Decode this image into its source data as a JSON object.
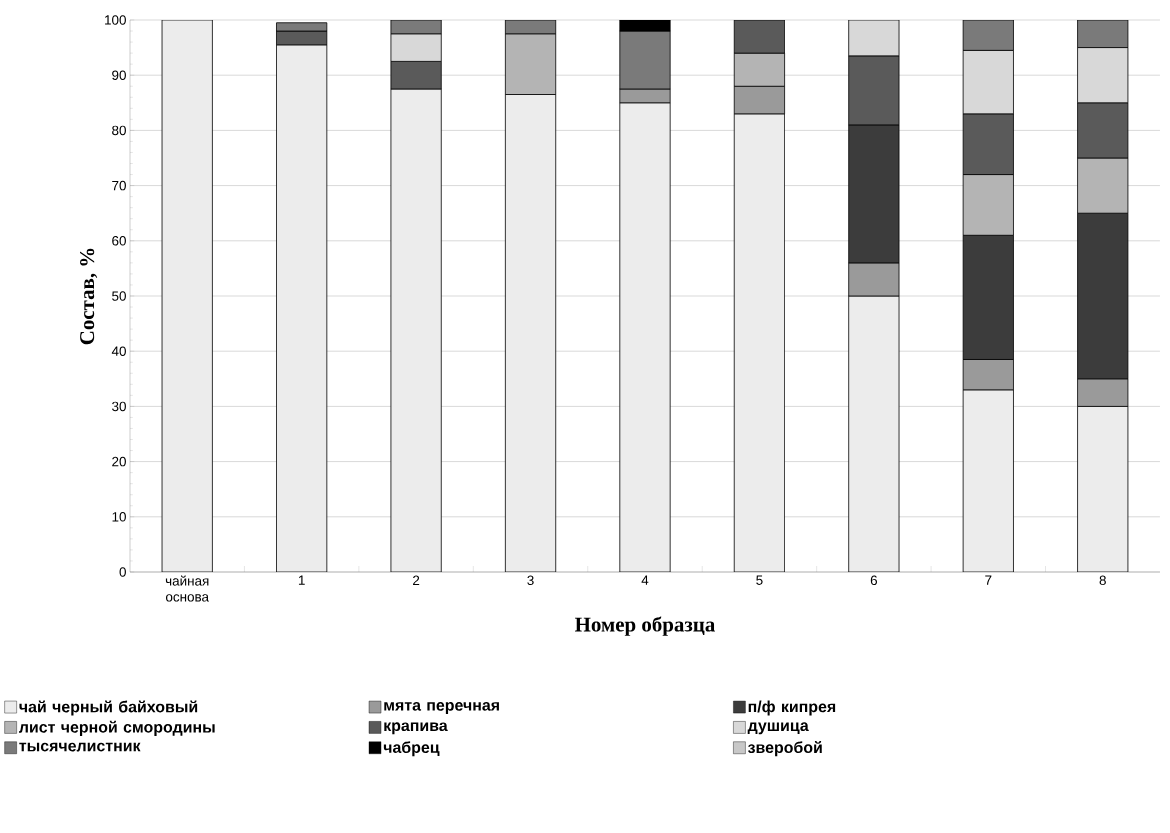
{
  "chart_data": {
    "type": "bar",
    "stacked": true,
    "xlabel": "Номер образца",
    "ylabel": "**Состав,** %",
    "categories": [
      "чайная основа",
      "1",
      "2",
      "3",
      "4",
      "5",
      "6",
      "7",
      "8"
    ],
    "series": [
      {
        "name": "чай черный байховый",
        "color": "#ececec",
        "values": [
          100,
          95.5,
          87.5,
          86.5,
          85,
          83,
          50,
          33,
          30
        ]
      },
      {
        "name": "мята перечная",
        "color": "#9a9a9a",
        "values": [
          null,
          null,
          null,
          null,
          2.5,
          5,
          6,
          5.5,
          5
        ]
      },
      {
        "name": "п/ф кипрея",
        "color": "#3c3c3c",
        "values": [
          null,
          null,
          null,
          null,
          null,
          null,
          25,
          22.5,
          30
        ]
      },
      {
        "name": "лист черной смородины",
        "color": "#b4b4b4",
        "values": [
          null,
          null,
          null,
          11,
          null,
          6,
          null,
          11,
          10
        ]
      },
      {
        "name": "крапива",
        "color": "#5a5a5a",
        "values": [
          null,
          2.5,
          5,
          null,
          null,
          6,
          12.5,
          11,
          10
        ]
      },
      {
        "name": "душица",
        "color": "#d8d8d8",
        "values": [
          null,
          null,
          5,
          null,
          null,
          null,
          6.5,
          11.5,
          10
        ]
      },
      {
        "name": "тысячелистник",
        "color": "#7a7a7a",
        "values": [
          null,
          1.5,
          2.5,
          2.5,
          10.5,
          null,
          null,
          5.5,
          5
        ]
      },
      {
        "name": "чабрец",
        "color": "#000000",
        "values": [
          null,
          null,
          null,
          null,
          2,
          null,
          null,
          null,
          null
        ]
      },
      {
        "name": "зверобой",
        "color": "#c8c8c8",
        "values": [
          null,
          null,
          null,
          null,
          null,
          null,
          null,
          null,
          null
        ]
      }
    ],
    "ylim": [
      0,
      100
    ],
    "yticks": [
      0,
      10,
      20,
      30,
      40,
      50,
      60,
      70,
      80,
      90,
      100
    ],
    "grid": "y",
    "legend": "bottom"
  }
}
